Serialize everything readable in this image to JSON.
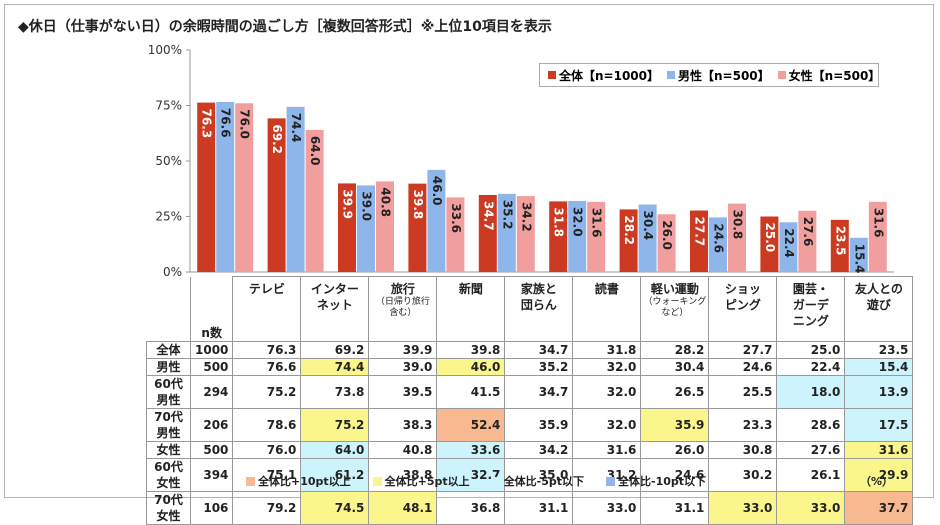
{
  "title": "◆休日（仕事がない日）の余暇時間の過ごし方［複数回答形式］※上位10項目を表示",
  "colors": {
    "all": "#cc3a22",
    "male": "#8fb6ea",
    "female": "#f19e9e",
    "up10": "#f8b990",
    "up5": "#fbf68c",
    "down5": "#cdf4fc",
    "down10": "#8fb4f0"
  },
  "legend": [
    "全体【n=1000】",
    "男性【n=500】",
    "女性【n=500】"
  ],
  "table": {
    "n_header": "n数",
    "unit": "（%）",
    "rows": [
      {
        "label": "全体",
        "n": "1000",
        "values": [
          "76.3",
          "69.2",
          "39.9",
          "39.8",
          "34.7",
          "31.8",
          "28.2",
          "27.7",
          "25.0",
          "23.5"
        ],
        "hl": [
          "",
          "",
          "",
          "",
          "",
          "",
          "",
          "",
          "",
          ""
        ]
      },
      {
        "label": "男性",
        "n": "500",
        "values": [
          "76.6",
          "74.4",
          "39.0",
          "46.0",
          "35.2",
          "32.0",
          "30.4",
          "24.6",
          "22.4",
          "15.4"
        ],
        "hl": [
          "",
          "up5",
          "",
          "up5",
          "",
          "",
          "",
          "",
          "",
          "down5"
        ]
      },
      {
        "label": "60代男性",
        "n": "294",
        "values": [
          "75.2",
          "73.8",
          "39.5",
          "41.5",
          "34.7",
          "32.0",
          "26.5",
          "25.5",
          "18.0",
          "13.9"
        ],
        "hl": [
          "",
          "",
          "",
          "",
          "",
          "",
          "",
          "",
          "down5",
          "down5"
        ]
      },
      {
        "label": "70代男性",
        "n": "206",
        "values": [
          "78.6",
          "75.2",
          "38.3",
          "52.4",
          "35.9",
          "32.0",
          "35.9",
          "23.3",
          "28.6",
          "17.5"
        ],
        "hl": [
          "",
          "up5",
          "",
          "up10",
          "",
          "",
          "up5",
          "",
          "",
          "down5"
        ]
      },
      {
        "label": "女性",
        "n": "500",
        "values": [
          "76.0",
          "64.0",
          "40.8",
          "33.6",
          "34.2",
          "31.6",
          "26.0",
          "30.8",
          "27.6",
          "31.6"
        ],
        "hl": [
          "",
          "down5",
          "",
          "down5",
          "",
          "",
          "",
          "",
          "",
          "up5"
        ]
      },
      {
        "label": "60代女性",
        "n": "394",
        "values": [
          "75.1",
          "61.2",
          "38.8",
          "32.7",
          "35.0",
          "31.2",
          "24.6",
          "30.2",
          "26.1",
          "29.9"
        ],
        "hl": [
          "",
          "down5",
          "",
          "down5",
          "",
          "",
          "",
          "",
          "",
          "up5"
        ]
      },
      {
        "label": "70代女性",
        "n": "106",
        "values": [
          "79.2",
          "74.5",
          "48.1",
          "36.8",
          "31.1",
          "33.0",
          "31.1",
          "33.0",
          "33.0",
          "37.7"
        ],
        "hl": [
          "",
          "up5",
          "up5",
          "",
          "",
          "",
          "",
          "up5",
          "up5",
          "up10"
        ]
      }
    ]
  },
  "bottom_legend": [
    "全体比+10pt以上",
    "全体比+5pt以上",
    "全体比-5pt以下",
    "全体比-10pt以下"
  ],
  "chart_data": {
    "type": "bar",
    "title": "◆休日（仕事がない日）の余暇時間の過ごし方［複数回答形式］※上位10項目を表示",
    "categories": [
      {
        "name": "テレビ",
        "sub": ""
      },
      {
        "name": "インター\nネット",
        "sub": ""
      },
      {
        "name": "旅行",
        "sub": "（日帰り旅行\n含む）"
      },
      {
        "name": "新聞",
        "sub": ""
      },
      {
        "name": "家族と\n団らん",
        "sub": ""
      },
      {
        "name": "読書",
        "sub": ""
      },
      {
        "name": "軽い運動",
        "sub": "（ウォーキング\nなど）"
      },
      {
        "name": "ショッ\nピング",
        "sub": ""
      },
      {
        "name": "園芸・\nガーデ\nニング",
        "sub": ""
      },
      {
        "name": "友人との\n遊び",
        "sub": ""
      }
    ],
    "series": [
      {
        "name": "全体【n=1000】",
        "values": [
          76.3,
          69.2,
          39.9,
          39.8,
          34.7,
          31.8,
          28.2,
          27.7,
          25.0,
          23.5
        ]
      },
      {
        "name": "男性【n=500】",
        "values": [
          76.6,
          74.4,
          39.0,
          46.0,
          35.2,
          32.0,
          30.4,
          24.6,
          22.4,
          15.4
        ]
      },
      {
        "name": "女性【n=500】",
        "values": [
          76.0,
          64.0,
          40.8,
          33.6,
          34.2,
          31.6,
          26.0,
          30.8,
          27.6,
          31.6
        ]
      }
    ],
    "yticks": [
      "0%",
      "25%",
      "50%",
      "75%",
      "100%"
    ],
    "ylim": [
      0,
      100
    ],
    "grid": false,
    "legend_position": "top-right"
  }
}
